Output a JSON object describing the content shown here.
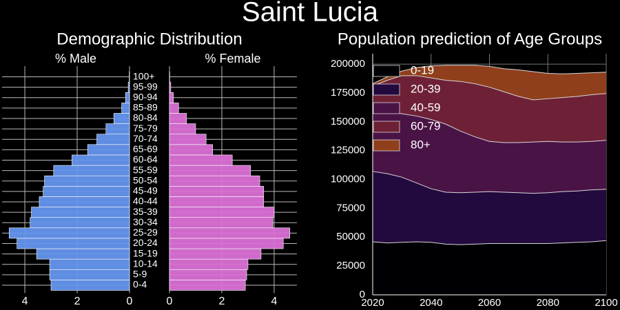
{
  "title": "Saint Lucia",
  "chart_data": [
    {
      "type": "pyramid",
      "title": "Demographic Distribution",
      "categories": [
        "0-4",
        "5-9",
        "10-14",
        "15-19",
        "20-24",
        "25-29",
        "30-34",
        "35-39",
        "40-44",
        "45-49",
        "50-54",
        "55-59",
        "60-64",
        "65-69",
        "70-74",
        "75-79",
        "80-84",
        "85-89",
        "90-94",
        "95-99",
        "100+"
      ],
      "series": [
        {
          "name": "% Male",
          "color": "#6495ed",
          "values": [
            3.0,
            3.05,
            3.05,
            3.55,
            4.3,
            4.6,
            3.8,
            3.75,
            3.45,
            3.3,
            3.25,
            2.9,
            2.2,
            1.6,
            1.25,
            0.9,
            0.6,
            0.3,
            0.15,
            0.05,
            0.01
          ]
        },
        {
          "name": "% Female",
          "color": "#da70d6",
          "values": [
            2.9,
            2.95,
            3.0,
            3.5,
            4.35,
            4.6,
            3.95,
            4.0,
            3.6,
            3.6,
            3.45,
            3.1,
            2.4,
            1.65,
            1.4,
            1.0,
            0.65,
            0.35,
            0.15,
            0.05,
            0.01
          ]
        }
      ],
      "xlim": [
        0,
        4.87
      ],
      "xticks": [
        0,
        2,
        4
      ],
      "grid": true
    },
    {
      "type": "area",
      "title": "Population prediction of Age Groups",
      "x": [
        2020,
        2025,
        2030,
        2035,
        2040,
        2045,
        2050,
        2055,
        2060,
        2065,
        2070,
        2075,
        2080,
        2085,
        2090,
        2095,
        2100
      ],
      "series": [
        {
          "name": "0-19",
          "color": "#000004",
          "values": [
            46000,
            45000,
            45500,
            46000,
            45500,
            44000,
            43500,
            44000,
            44500,
            44500,
            44500,
            44500,
            44500,
            45000,
            45500,
            46000,
            47000
          ]
        },
        {
          "name": "20-39",
          "color": "#230a3e",
          "values": [
            61000,
            60000,
            56500,
            51000,
            46500,
            45000,
            45000,
            45000,
            45000,
            44500,
            44000,
            43500,
            44000,
            44500,
            44500,
            45000,
            44500
          ]
        },
        {
          "name": "40-59",
          "color": "#4a1346",
          "values": [
            52000,
            54000,
            55000,
            58000,
            60000,
            59000,
            53500,
            48000,
            43500,
            43000,
            43500,
            44500,
            44500,
            43000,
            42500,
            42000,
            42500
          ]
        },
        {
          "name": "60-79",
          "color": "#6e2136",
          "values": [
            22000,
            27000,
            33000,
            35000,
            36000,
            38000,
            43000,
            46000,
            47000,
            44000,
            40000,
            36500,
            37000,
            38500,
            39500,
            40500,
            40500
          ]
        },
        {
          "name": "80+",
          "color": "#8f3f1b",
          "values": [
            2000,
            3000,
            4000,
            7000,
            10500,
            13000,
            14000,
            16000,
            18000,
            20000,
            23000,
            24500,
            22000,
            20500,
            20000,
            19000,
            18500
          ]
        }
      ],
      "xlim": [
        2020,
        2100
      ],
      "ylim": [
        0,
        209000
      ],
      "xticks": [
        2020,
        2040,
        2060,
        2080,
        2100
      ],
      "yticks": [
        0,
        25000,
        50000,
        75000,
        100000,
        125000,
        150000,
        175000,
        200000
      ],
      "legend": "upper left",
      "grid": true
    }
  ]
}
